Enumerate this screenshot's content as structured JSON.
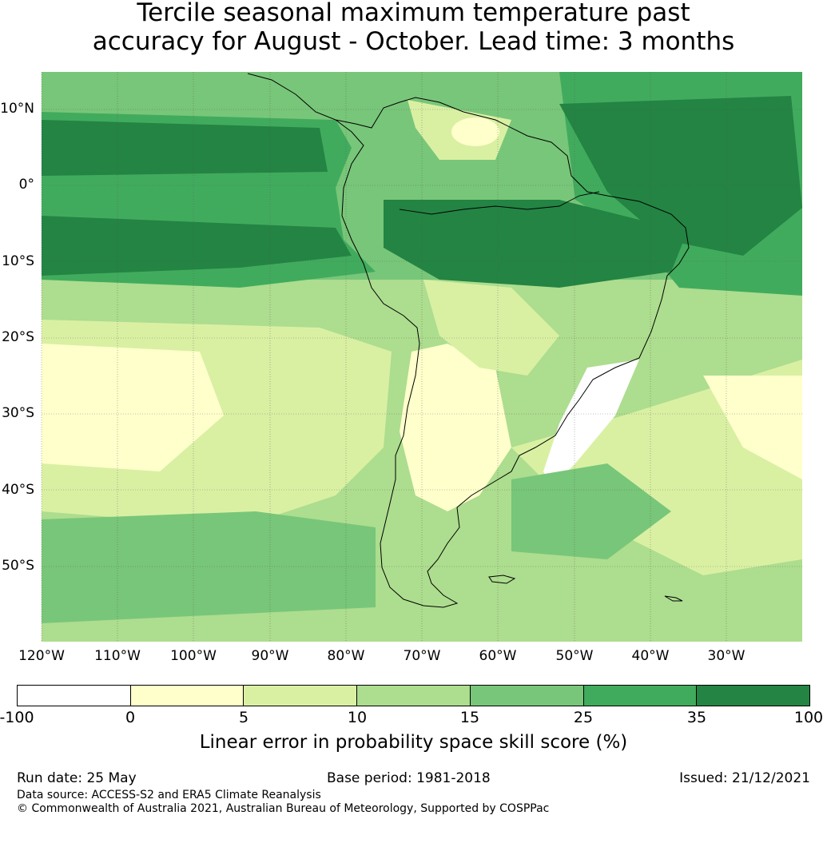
{
  "title": {
    "line1": "Tercile seasonal maximum temperature past",
    "line2": "accuracy for August - October. Lead time: 3 months"
  },
  "map": {
    "region": "South America",
    "latitude_labels": [
      "10°N",
      "0°",
      "10°S",
      "20°S",
      "30°S",
      "40°S",
      "50°S"
    ],
    "longitude_labels": [
      "120°W",
      "110°W",
      "100°W",
      "90°W",
      "80°W",
      "70°W",
      "60°W",
      "50°W",
      "40°W",
      "30°W"
    ],
    "gridlines": true
  },
  "colorbar": {
    "ticks": [
      "-100",
      "0",
      "5",
      "10",
      "15",
      "25",
      "35",
      "100"
    ],
    "colors": [
      "#ffffff",
      "#ffffcc",
      "#d9f0a3",
      "#addd8e",
      "#78c679",
      "#41ab5d",
      "#238443"
    ],
    "label": "Linear error in probability space skill score (%)"
  },
  "footer": {
    "run_date": "Run date: 25 May",
    "base_period": "Base period: 1981-2018",
    "issued": "Issued: 21/12/2021",
    "data_source": "Data source: ACCESS-S2 and ERA5 Climate Reanalysis",
    "copyright": "© Commonwealth of Australia 2021, Australian Bureau of Meteorology, Supported by COSPPac"
  }
}
